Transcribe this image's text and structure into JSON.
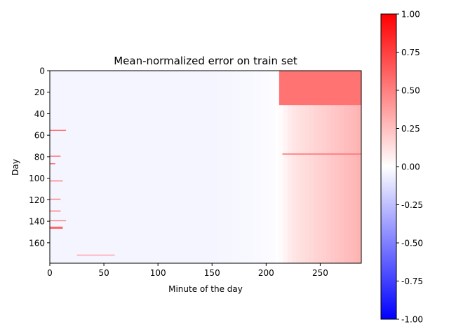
{
  "chart_data": {
    "type": "heatmap",
    "title": "Mean-normalized error on train set",
    "xlabel": "Minute of the day",
    "ylabel": "Day",
    "x_ticks": [
      0,
      50,
      100,
      150,
      200,
      250
    ],
    "y_ticks": [
      0,
      20,
      40,
      60,
      80,
      100,
      120,
      140,
      160
    ],
    "xlim": [
      0,
      288
    ],
    "ylim": [
      0,
      179
    ],
    "y_inverted": true,
    "colormap": "bwr",
    "color_range": [
      -1.0,
      1.0
    ],
    "colorbar_ticks": [
      "1.00",
      "0.75",
      "0.50",
      "0.25",
      "0.00",
      "-0.25",
      "-0.50",
      "-0.75",
      "-1.00"
    ],
    "colorbar_tick_values": [
      1.0,
      0.75,
      0.5,
      0.25,
      0.0,
      -0.25,
      -0.5,
      -0.75,
      -1.0
    ],
    "baseline_profile": [
      {
        "minute": 0,
        "value": -0.04
      },
      {
        "minute": 150,
        "value": -0.04
      },
      {
        "minute": 200,
        "value": -0.02
      },
      {
        "minute": 212,
        "value": 0.0
      },
      {
        "minute": 225,
        "value": 0.1
      },
      {
        "minute": 250,
        "value": 0.18
      },
      {
        "minute": 288,
        "value": 0.3
      }
    ],
    "bands": [
      {
        "day_start": 0,
        "day_end": 32,
        "minute_start": 212,
        "minute_end": 288,
        "value": 0.55
      },
      {
        "day_start": 55,
        "day_end": 56,
        "minute_start": 0,
        "minute_end": 15,
        "value": 0.55
      },
      {
        "day_start": 77,
        "day_end": 78,
        "minute_start": 215,
        "minute_end": 288,
        "value": 0.55
      },
      {
        "day_start": 79,
        "day_end": 80,
        "minute_start": 0,
        "minute_end": 10,
        "value": 0.5
      },
      {
        "day_start": 86,
        "day_end": 87,
        "minute_start": 0,
        "minute_end": 5,
        "value": 0.6
      },
      {
        "day_start": 102,
        "day_end": 103,
        "minute_start": 0,
        "minute_end": 12,
        "value": 0.5
      },
      {
        "day_start": 119,
        "day_end": 120,
        "minute_start": 0,
        "minute_end": 10,
        "value": 0.5
      },
      {
        "day_start": 130,
        "day_end": 131,
        "minute_start": 0,
        "minute_end": 10,
        "value": 0.5
      },
      {
        "day_start": 139,
        "day_end": 140,
        "minute_start": 0,
        "minute_end": 15,
        "value": 0.5
      },
      {
        "day_start": 145,
        "day_end": 147,
        "minute_start": 0,
        "minute_end": 12,
        "value": 0.6
      },
      {
        "day_start": 171,
        "day_end": 172,
        "minute_start": 25,
        "minute_end": 60,
        "value": 0.35
      }
    ]
  }
}
